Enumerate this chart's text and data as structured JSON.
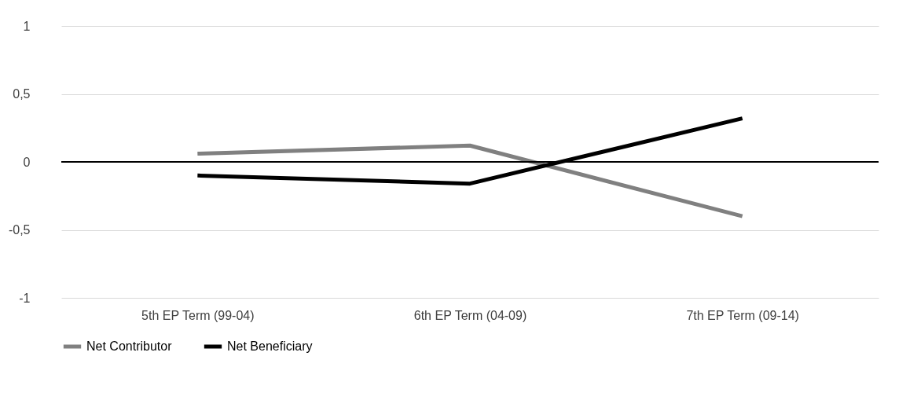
{
  "chart_data": {
    "type": "line",
    "categories": [
      "5th EP Term (99-04)",
      "6th EP Term (04-09)",
      "7th EP Term (09-14)"
    ],
    "series": [
      {
        "name": "Net Contributor",
        "color": "#808080",
        "values": [
          0.06,
          0.12,
          -0.4
        ]
      },
      {
        "name": "Net Beneficiary",
        "color": "#000000",
        "values": [
          -0.1,
          -0.16,
          0.32
        ]
      }
    ],
    "ylim": [
      -1,
      1
    ],
    "yticks": [
      -1,
      {
        "value": -0.5,
        "label": "-0,5"
      },
      0,
      {
        "value": 0.5,
        "label": "0,5"
      },
      1
    ],
    "ref_lines": [
      {
        "axis": "y",
        "value": 0,
        "color": "#000000"
      }
    ],
    "grid": "y",
    "legend": "bottom",
    "marker": "none",
    "line_style": "solid"
  }
}
